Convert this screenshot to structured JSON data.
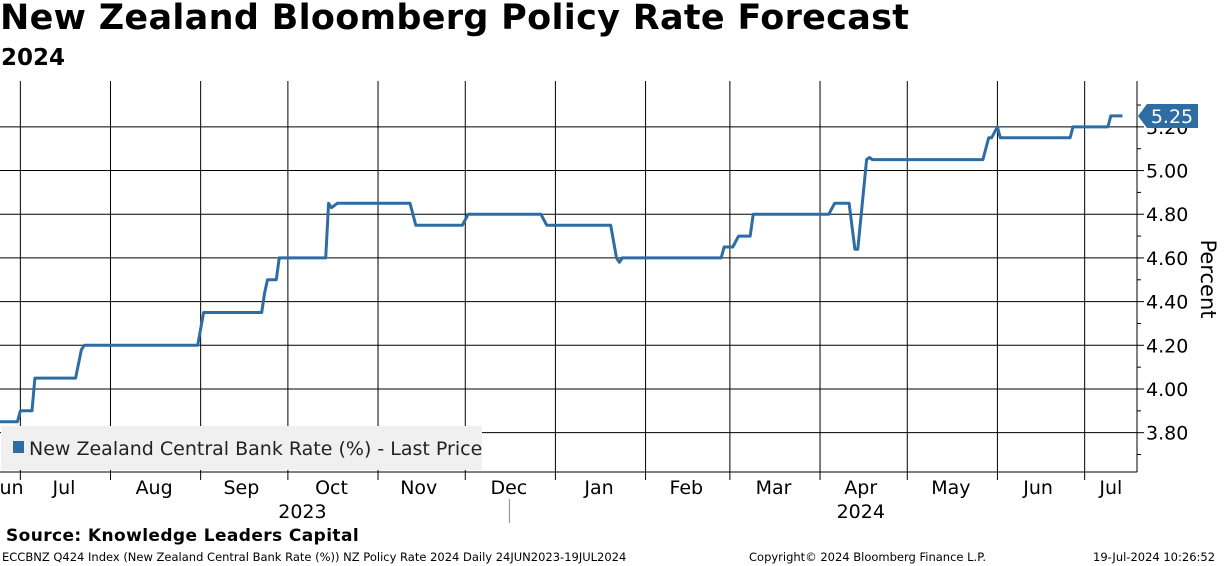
{
  "header": {
    "title": "New Zealand Bloomberg Policy Rate Forecast",
    "subtitle": "2024"
  },
  "footer": {
    "source": "Source: Knowledge Leaders Capital",
    "ticker_info": "ECCBNZ Q424 Index (New Zealand Central Bank Rate (%)) NZ Policy Rate 2024  Daily 24JUN2023-19JUL2024",
    "copyright": "Copyright© 2024 Bloomberg Finance L.P.",
    "timestamp": "19-Jul-2024 10:26:52"
  },
  "colors": {
    "line": "#2e6da4",
    "last_label_bg": "#2e6da4",
    "legend_bg": "#f0f0f0"
  },
  "chart_data": {
    "type": "line",
    "title": "New Zealand Bloomberg Policy Rate Forecast",
    "subtitle": "2024",
    "xlabel": "",
    "ylabel": "Percent",
    "ylim": [
      3.62,
      5.41
    ],
    "xlim": [
      "2023-06-24",
      "2024-07-19"
    ],
    "grid": true,
    "y_ticks": [
      3.8,
      4.0,
      4.2,
      4.4,
      4.6,
      4.8,
      5.0,
      5.2
    ],
    "y_tick_labels": [
      "3.80",
      "4.00",
      "4.20",
      "4.40",
      "4.60",
      "4.80",
      "5.00",
      "5.20"
    ],
    "month_gridlines": [
      "2023-07-01",
      "2023-08-01",
      "2023-09-01",
      "2023-10-01",
      "2023-11-01",
      "2023-12-01",
      "2024-01-01",
      "2024-02-01",
      "2024-03-01",
      "2024-04-01",
      "2024-05-01",
      "2024-06-01",
      "2024-07-01"
    ],
    "month_labels": [
      {
        "label": "Jun",
        "date": "2023-06-27"
      },
      {
        "label": "Jul",
        "date": "2023-07-16"
      },
      {
        "label": "Aug",
        "date": "2023-08-16"
      },
      {
        "label": "Sep",
        "date": "2023-09-15"
      },
      {
        "label": "Oct",
        "date": "2023-10-16"
      },
      {
        "label": "Nov",
        "date": "2023-11-15"
      },
      {
        "label": "Dec",
        "date": "2023-12-16"
      },
      {
        "label": "Jan",
        "date": "2024-01-16"
      },
      {
        "label": "Feb",
        "date": "2024-02-15"
      },
      {
        "label": "Mar",
        "date": "2024-03-16"
      },
      {
        "label": "Apr",
        "date": "2024-04-15"
      },
      {
        "label": "May",
        "date": "2024-05-16"
      },
      {
        "label": "Jun",
        "date": "2024-06-15"
      },
      {
        "label": "Jul",
        "date": "2024-07-10"
      }
    ],
    "year_labels": [
      {
        "label": "2023",
        "date": "2023-10-06"
      },
      {
        "label": "2024",
        "date": "2024-04-15"
      }
    ],
    "year_separator_date": "2024-01-01",
    "series": [
      {
        "name": "New Zealand Central Bank Rate (%) - Last Price",
        "last_value_label": "5.25",
        "points": [
          [
            "2023-06-24",
            3.85
          ],
          [
            "2023-06-30",
            3.85
          ],
          [
            "2023-07-01",
            3.9
          ],
          [
            "2023-07-05",
            3.9
          ],
          [
            "2023-07-06",
            4.05
          ],
          [
            "2023-07-20",
            4.05
          ],
          [
            "2023-07-22",
            4.18
          ],
          [
            "2023-07-23",
            4.2
          ],
          [
            "2023-08-31",
            4.2
          ],
          [
            "2023-09-02",
            4.35
          ],
          [
            "2023-09-22",
            4.35
          ],
          [
            "2023-09-23",
            4.44
          ],
          [
            "2023-09-24",
            4.5
          ],
          [
            "2023-09-27",
            4.5
          ],
          [
            "2023-09-28",
            4.6
          ],
          [
            "2023-10-14",
            4.6
          ],
          [
            "2023-10-15",
            4.85
          ],
          [
            "2023-10-16",
            4.83
          ],
          [
            "2023-10-18",
            4.85
          ],
          [
            "2023-11-12",
            4.85
          ],
          [
            "2023-11-14",
            4.75
          ],
          [
            "2023-11-30",
            4.75
          ],
          [
            "2023-12-02",
            4.8
          ],
          [
            "2023-12-27",
            4.8
          ],
          [
            "2023-12-29",
            4.75
          ],
          [
            "2024-01-20",
            4.75
          ],
          [
            "2024-01-22",
            4.6
          ],
          [
            "2024-01-23",
            4.58
          ],
          [
            "2024-01-24",
            4.6
          ],
          [
            "2024-02-27",
            4.6
          ],
          [
            "2024-02-28",
            4.65
          ],
          [
            "2024-03-02",
            4.65
          ],
          [
            "2024-03-04",
            4.7
          ],
          [
            "2024-03-08",
            4.7
          ],
          [
            "2024-03-09",
            4.8
          ],
          [
            "2024-04-04",
            4.8
          ],
          [
            "2024-04-06",
            4.85
          ],
          [
            "2024-04-11",
            4.85
          ],
          [
            "2024-04-13",
            4.64
          ],
          [
            "2024-04-14",
            4.64
          ],
          [
            "2024-04-17",
            5.05
          ],
          [
            "2024-04-18",
            5.06
          ],
          [
            "2024-04-19",
            5.05
          ],
          [
            "2024-05-27",
            5.05
          ],
          [
            "2024-05-29",
            5.15
          ],
          [
            "2024-05-30",
            5.15
          ],
          [
            "2024-06-01",
            5.2
          ],
          [
            "2024-06-02",
            5.15
          ],
          [
            "2024-06-26",
            5.15
          ],
          [
            "2024-06-27",
            5.2
          ],
          [
            "2024-07-09",
            5.2
          ],
          [
            "2024-07-10",
            5.25
          ],
          [
            "2024-07-14",
            5.25
          ]
        ]
      }
    ]
  }
}
